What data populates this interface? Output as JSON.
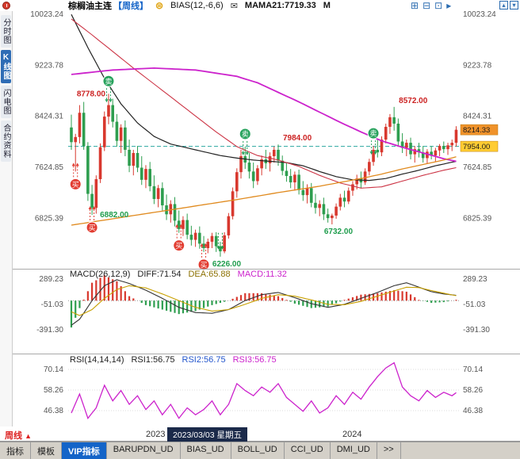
{
  "header": {
    "title": "棕榈油主连",
    "period": "【周线】",
    "pause_glyph": "⊜",
    "indicator_label": "BIAS(12,-6,6)",
    "mail_glyph": "✉",
    "mama_label": "MAMA21:7719.33",
    "m_label": "M",
    "window_icons": [
      "⊞",
      "⊟",
      "⊡",
      "▸"
    ],
    "corner_icons": [
      "▴",
      "▾"
    ]
  },
  "sidebar": {
    "items": [
      {
        "label": "分时图",
        "active": false
      },
      {
        "label": "K线图",
        "active": true
      },
      {
        "label": "闪电图",
        "active": false
      },
      {
        "label": "合约资料",
        "active": false
      }
    ]
  },
  "macd_header": {
    "name": "MACD(26,12,9)",
    "diff": "DIFF:71.54",
    "dea": "DEA:65.88",
    "macd": "MACD:11.32"
  },
  "rsi_header": {
    "name": "RSI(14,14,14)",
    "rsi1": "RSI1:56.75",
    "rsi2": "RSI2:56.75",
    "rsi3": "RSI3:56.75"
  },
  "time_axis": {
    "period_label": "周线",
    "period_arrow": "▲",
    "year_left": "2023",
    "selected_date": "2023/03/03 星期五",
    "year_right": "2024"
  },
  "tabs": [
    {
      "label": "指标"
    },
    {
      "label": "模板"
    },
    {
      "label": "VIP指标"
    },
    {
      "label": "BARUPDN_UD"
    },
    {
      "label": "BIAS_UD"
    },
    {
      "label": "BOLL_UD"
    },
    {
      "label": "CCI_UD"
    },
    {
      "label": "DMI_UD"
    },
    {
      "label": ">>"
    }
  ],
  "chart_data": {
    "type": "candlestick",
    "title": "棕榈油主连【周线】",
    "price_axis": [
      10023.24,
      9223.78,
      8424.31,
      7624.85,
      6825.39
    ],
    "price_range": [
      6000,
      10060
    ],
    "level_line": 7954.0,
    "price_tags": [
      {
        "text": "8214.33",
        "price": 8214.33,
        "bg": "#f0922a"
      },
      {
        "text": "7954.00",
        "price": 7954.0,
        "bg": "#ffcc33"
      }
    ],
    "candles": [
      [
        8250,
        8450,
        7900,
        8020
      ],
      [
        8020,
        8150,
        7560,
        8100
      ],
      [
        8100,
        8600,
        8000,
        8480
      ],
      [
        8480,
        8650,
        7900,
        7960
      ],
      [
        7960,
        8020,
        7100,
        7210
      ],
      [
        7210,
        7350,
        6882,
        6990
      ],
      [
        6990,
        7500,
        6900,
        7440
      ],
      [
        7440,
        8000,
        7380,
        7940
      ],
      [
        7940,
        8500,
        7880,
        8420
      ],
      [
        8420,
        8778,
        8300,
        8600
      ],
      [
        8600,
        8700,
        8250,
        8340
      ],
      [
        8340,
        8460,
        7950,
        8040
      ],
      [
        8040,
        8300,
        7850,
        8250
      ],
      [
        8250,
        8360,
        7800,
        7900
      ],
      [
        7900,
        8060,
        7550,
        7650
      ],
      [
        7650,
        7900,
        7500,
        7850
      ],
      [
        7850,
        7960,
        7550,
        7620
      ],
      [
        7620,
        7800,
        7350,
        7430
      ],
      [
        7430,
        7660,
        7300,
        7600
      ],
      [
        7600,
        7710,
        7250,
        7330
      ],
      [
        7330,
        7500,
        7050,
        7130
      ],
      [
        7130,
        7350,
        7000,
        7300
      ],
      [
        7300,
        7390,
        6950,
        7030
      ],
      [
        7030,
        7200,
        6800,
        6890
      ],
      [
        6890,
        7110,
        6760,
        7050
      ],
      [
        7050,
        7160,
        6700,
        6790
      ],
      [
        6790,
        6950,
        6600,
        6660
      ],
      [
        6660,
        6860,
        6550,
        6800
      ],
      [
        6800,
        6900,
        6500,
        6570
      ],
      [
        6570,
        6710,
        6400,
        6490
      ],
      [
        6490,
        6650,
        6380,
        6600
      ],
      [
        6600,
        6700,
        6350,
        6430
      ],
      [
        6430,
        6550,
        6300,
        6360
      ],
      [
        6360,
        6510,
        6280,
        6460
      ],
      [
        6460,
        6600,
        6360,
        6550
      ],
      [
        6550,
        6610,
        6300,
        6390
      ],
      [
        6390,
        6460,
        6226,
        6310
      ],
      [
        6310,
        6610,
        6280,
        6560
      ],
      [
        6560,
        6910,
        6510,
        6860
      ],
      [
        6860,
        7310,
        6810,
        7250
      ],
      [
        7250,
        7610,
        7150,
        7550
      ],
      [
        7550,
        7900,
        7450,
        7800
      ],
      [
        7800,
        7950,
        7600,
        7700
      ],
      [
        7700,
        7850,
        7450,
        7560
      ],
      [
        7560,
        7700,
        7300,
        7410
      ],
      [
        7410,
        7660,
        7350,
        7610
      ],
      [
        7610,
        7810,
        7500,
        7750
      ],
      [
        7750,
        7900,
        7600,
        7690
      ],
      [
        7690,
        7860,
        7560,
        7800
      ],
      [
        7800,
        7950,
        7700,
        7900
      ],
      [
        7900,
        7984,
        7650,
        7730
      ],
      [
        7730,
        7810,
        7500,
        7570
      ],
      [
        7570,
        7700,
        7400,
        7490
      ],
      [
        7490,
        7600,
        7300,
        7390
      ],
      [
        7390,
        7560,
        7260,
        7510
      ],
      [
        7510,
        7590,
        7200,
        7270
      ],
      [
        7270,
        7410,
        7100,
        7190
      ],
      [
        7190,
        7360,
        7060,
        7300
      ],
      [
        7300,
        7380,
        7000,
        7070
      ],
      [
        7070,
        7210,
        6900,
        6990
      ],
      [
        6990,
        7110,
        6860,
        7050
      ],
      [
        7050,
        7150,
        6800,
        6890
      ],
      [
        6890,
        6980,
        6760,
        6830
      ],
      [
        6830,
        6900,
        6732,
        6870
      ],
      [
        6870,
        7060,
        6820,
        7010
      ],
      [
        7010,
        7210,
        6950,
        7150
      ],
      [
        7150,
        7260,
        7000,
        7090
      ],
      [
        7090,
        7310,
        7050,
        7260
      ],
      [
        7260,
        7410,
        7180,
        7360
      ],
      [
        7360,
        7510,
        7280,
        7450
      ],
      [
        7450,
        7560,
        7300,
        7390
      ],
      [
        7390,
        7610,
        7350,
        7560
      ],
      [
        7560,
        7760,
        7500,
        7710
      ],
      [
        7710,
        7960,
        7650,
        7900
      ],
      [
        7900,
        8060,
        7780,
        7860
      ],
      [
        7860,
        8110,
        7800,
        8060
      ],
      [
        8060,
        8310,
        8000,
        8260
      ],
      [
        8260,
        8460,
        8150,
        8410
      ],
      [
        8410,
        8572,
        8200,
        8310
      ],
      [
        8310,
        8390,
        7950,
        8030
      ],
      [
        8030,
        8160,
        7850,
        7930
      ],
      [
        7930,
        8060,
        7800,
        8010
      ],
      [
        8010,
        8090,
        7750,
        7830
      ],
      [
        7830,
        7960,
        7700,
        7910
      ],
      [
        7910,
        8010,
        7780,
        7860
      ],
      [
        7860,
        7960,
        7700,
        7770
      ],
      [
        7770,
        7910,
        7680,
        7870
      ],
      [
        7870,
        7960,
        7750,
        7810
      ],
      [
        7810,
        7930,
        7720,
        7890
      ],
      [
        7890,
        7990,
        7800,
        7960
      ],
      [
        7960,
        8030,
        7850,
        7910
      ],
      [
        7910,
        8010,
        7820,
        7970
      ],
      [
        7970,
        8060,
        7880,
        8010
      ],
      [
        8010,
        8270,
        7950,
        8214.33
      ]
    ],
    "ma_black": [
      [
        0,
        10020
      ],
      [
        4,
        9500
      ],
      [
        8,
        9020
      ],
      [
        12,
        8620
      ],
      [
        16,
        8320
      ],
      [
        20,
        8110
      ],
      [
        24,
        7990
      ],
      [
        28,
        7930
      ],
      [
        32,
        7870
      ],
      [
        36,
        7810
      ],
      [
        40,
        7770
      ],
      [
        44,
        7740
      ],
      [
        48,
        7720
      ],
      [
        52,
        7700
      ],
      [
        56,
        7650
      ],
      [
        60,
        7560
      ],
      [
        64,
        7480
      ],
      [
        68,
        7430
      ],
      [
        72,
        7420
      ],
      [
        76,
        7450
      ],
      [
        80,
        7520
      ],
      [
        84,
        7580
      ],
      [
        88,
        7650
      ],
      [
        93,
        7720
      ]
    ],
    "ma_red": [
      [
        0,
        9950
      ],
      [
        5,
        9700
      ],
      [
        10,
        9440
      ],
      [
        15,
        9180
      ],
      [
        20,
        8930
      ],
      [
        25,
        8680
      ],
      [
        30,
        8430
      ],
      [
        35,
        8180
      ],
      [
        40,
        7950
      ],
      [
        45,
        7810
      ],
      [
        50,
        7740
      ],
      [
        55,
        7640
      ],
      [
        60,
        7500
      ],
      [
        65,
        7380
      ],
      [
        70,
        7300
      ],
      [
        75,
        7320
      ],
      [
        80,
        7410
      ],
      [
        85,
        7500
      ],
      [
        90,
        7580
      ],
      [
        93,
        7620
      ]
    ],
    "ma_magenta": [
      [
        0,
        9080
      ],
      [
        10,
        9150
      ],
      [
        20,
        9180
      ],
      [
        30,
        9150
      ],
      [
        40,
        9050
      ],
      [
        45,
        8950
      ],
      [
        50,
        8800
      ],
      [
        55,
        8650
      ],
      [
        60,
        8490
      ],
      [
        65,
        8330
      ],
      [
        70,
        8180
      ],
      [
        75,
        8040
      ],
      [
        80,
        7940
      ],
      [
        85,
        7850
      ],
      [
        90,
        7760
      ],
      [
        93,
        7719.33
      ]
    ],
    "ma_orange": [
      [
        0,
        6720
      ],
      [
        10,
        6820
      ],
      [
        20,
        6920
      ],
      [
        30,
        7020
      ],
      [
        40,
        7120
      ],
      [
        50,
        7230
      ],
      [
        60,
        7330
      ],
      [
        65,
        7390
      ],
      [
        70,
        7450
      ],
      [
        75,
        7520
      ],
      [
        80,
        7600
      ],
      [
        85,
        7670
      ],
      [
        90,
        7740
      ],
      [
        93,
        7790
      ]
    ],
    "price_labels": [
      {
        "week": 9,
        "price": 8778,
        "text": "8778.00",
        "color": "#cc2222",
        "placement": "left"
      },
      {
        "week": 5,
        "price": 6882,
        "text": "6882.00",
        "color": "#1f9d4d",
        "placement": "right"
      },
      {
        "week": 36,
        "price": 6226,
        "text": "6226.00",
        "color": "#1f9d4d",
        "placement": "below",
        "arrows": true
      },
      {
        "week": 50,
        "price": 7984,
        "text": "7984.00",
        "color": "#cc2222",
        "placement": "right_above"
      },
      {
        "week": 63,
        "price": 6732,
        "text": "6732.00",
        "color": "#1f9d4d",
        "placement": "below"
      },
      {
        "week": 78,
        "price": 8572,
        "text": "8572.00",
        "color": "#cc2222",
        "placement": "right_above"
      }
    ],
    "markers": [
      {
        "week": 1,
        "type": "buy",
        "label": "买"
      },
      {
        "week": 5,
        "type": "buy",
        "label": "买"
      },
      {
        "week": 9,
        "type": "sell",
        "label": "卖"
      },
      {
        "week": 26,
        "type": "buy",
        "label": "买"
      },
      {
        "week": 32,
        "type": "buy",
        "label": "买"
      },
      {
        "week": 42,
        "type": "sell",
        "label": "卖"
      },
      {
        "week": 73,
        "type": "sell",
        "label": "卖"
      }
    ],
    "macd": {
      "axis": [
        289.23,
        -51.03,
        -391.3
      ],
      "diff": [
        [
          0,
          -330
        ],
        [
          2,
          -250
        ],
        [
          5,
          0
        ],
        [
          8,
          200
        ],
        [
          11,
          280
        ],
        [
          14,
          230
        ],
        [
          18,
          140
        ],
        [
          22,
          30
        ],
        [
          26,
          -90
        ],
        [
          30,
          -160
        ],
        [
          34,
          -170
        ],
        [
          38,
          -120
        ],
        [
          42,
          0
        ],
        [
          46,
          80
        ],
        [
          50,
          110
        ],
        [
          54,
          40
        ],
        [
          58,
          -40
        ],
        [
          62,
          -90
        ],
        [
          66,
          -50
        ],
        [
          70,
          30
        ],
        [
          74,
          110
        ],
        [
          78,
          200
        ],
        [
          81,
          240
        ],
        [
          84,
          180
        ],
        [
          87,
          120
        ],
        [
          90,
          90
        ],
        [
          93,
          71.54
        ]
      ],
      "dea": [
        [
          0,
          -150
        ],
        [
          2,
          -200
        ],
        [
          5,
          -120
        ],
        [
          8,
          30
        ],
        [
          11,
          150
        ],
        [
          14,
          200
        ],
        [
          18,
          170
        ],
        [
          22,
          90
        ],
        [
          26,
          0
        ],
        [
          30,
          -90
        ],
        [
          34,
          -140
        ],
        [
          38,
          -120
        ],
        [
          42,
          -50
        ],
        [
          46,
          30
        ],
        [
          50,
          80
        ],
        [
          54,
          60
        ],
        [
          58,
          10
        ],
        [
          62,
          -50
        ],
        [
          66,
          -55
        ],
        [
          70,
          -10
        ],
        [
          74,
          60
        ],
        [
          78,
          130
        ],
        [
          81,
          180
        ],
        [
          84,
          175
        ],
        [
          87,
          135
        ],
        [
          90,
          100
        ],
        [
          93,
          65.88
        ]
      ]
    },
    "rsi": {
      "axis": [
        70.14,
        58.26,
        46.38
      ],
      "line": [
        [
          0,
          45
        ],
        [
          2,
          56
        ],
        [
          4,
          42
        ],
        [
          6,
          48
        ],
        [
          8,
          61
        ],
        [
          10,
          52
        ],
        [
          12,
          58
        ],
        [
          14,
          50
        ],
        [
          16,
          55
        ],
        [
          18,
          47
        ],
        [
          20,
          52
        ],
        [
          22,
          44
        ],
        [
          24,
          50
        ],
        [
          26,
          42
        ],
        [
          28,
          48
        ],
        [
          30,
          44
        ],
        [
          32,
          47
        ],
        [
          34,
          52
        ],
        [
          36,
          44
        ],
        [
          38,
          50
        ],
        [
          40,
          62
        ],
        [
          42,
          58
        ],
        [
          44,
          55
        ],
        [
          46,
          60
        ],
        [
          48,
          57
        ],
        [
          50,
          62
        ],
        [
          52,
          54
        ],
        [
          54,
          50
        ],
        [
          56,
          46
        ],
        [
          58,
          52
        ],
        [
          60,
          45
        ],
        [
          62,
          48
        ],
        [
          64,
          55
        ],
        [
          66,
          50
        ],
        [
          68,
          57
        ],
        [
          70,
          53
        ],
        [
          72,
          60
        ],
        [
          74,
          66
        ],
        [
          76,
          71
        ],
        [
          78,
          74
        ],
        [
          80,
          60
        ],
        [
          82,
          55
        ],
        [
          84,
          52
        ],
        [
          86,
          58
        ],
        [
          88,
          54
        ],
        [
          90,
          57
        ],
        [
          92,
          55
        ],
        [
          93,
          56.75
        ]
      ]
    },
    "colors": {
      "up": "#d8382e",
      "down": "#2e9e4f",
      "ma_black": "#222222",
      "ma_red": "#cc3344",
      "ma_magenta": "#cc22cc",
      "ma_orange": "#e08a1e",
      "level": "#2aa7a0",
      "diff": "#333333",
      "dea": "#c8a000",
      "rsi": "#cc22cc",
      "sell": "#27a25c",
      "buy": "#e23c30"
    }
  }
}
